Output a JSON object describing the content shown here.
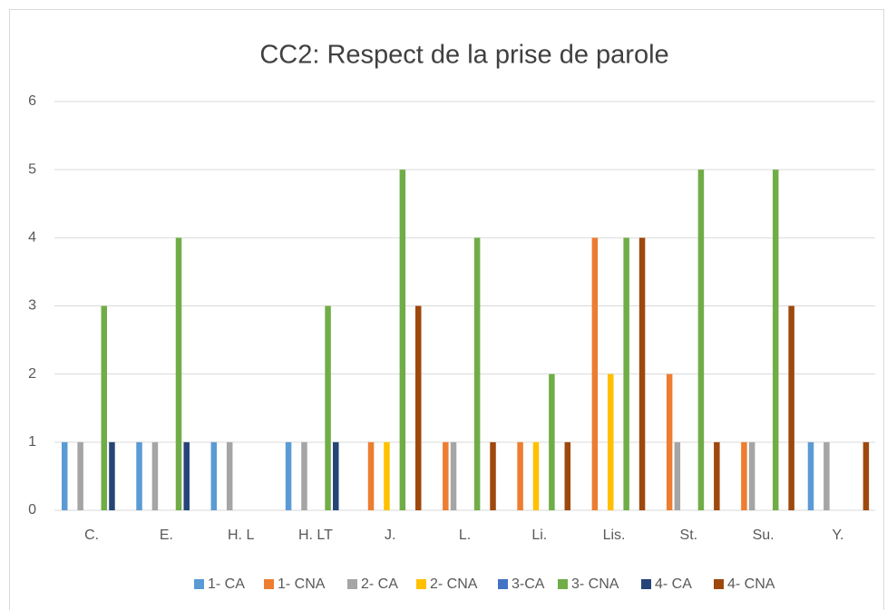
{
  "chart_data": {
    "type": "bar",
    "title": "CC2: Respect de la prise de parole",
    "categories": [
      "C.",
      "E.",
      "H. L",
      "H. LT",
      "J.",
      "L.",
      "Li.",
      "Lis.",
      "St.",
      "Su.",
      "Y."
    ],
    "series": [
      {
        "name": "1- CA",
        "color": "#5b9bd5",
        "values": [
          1,
          1,
          1,
          1,
          0,
          0,
          0,
          0,
          0,
          0,
          1
        ]
      },
      {
        "name": "1- CNA",
        "color": "#ed7d31",
        "values": [
          0,
          0,
          0,
          0,
          1,
          1,
          1,
          4,
          2,
          1,
          0
        ]
      },
      {
        "name": "2- CA",
        "color": "#a5a5a5",
        "values": [
          1,
          1,
          1,
          1,
          0,
          1,
          0,
          0,
          1,
          1,
          1
        ]
      },
      {
        "name": "2- CNA",
        "color": "#ffc000",
        "values": [
          0,
          0,
          0,
          0,
          1,
          0,
          1,
          2,
          0,
          0,
          0
        ]
      },
      {
        "name": "3-CA",
        "color": "#4472c4",
        "values": [
          0,
          0,
          0,
          0,
          0,
          0,
          0,
          0,
          0,
          0,
          0
        ]
      },
      {
        "name": "3- CNA",
        "color": "#70ad47",
        "values": [
          3,
          4,
          0,
          3,
          5,
          4,
          2,
          4,
          5,
          5,
          0
        ]
      },
      {
        "name": "4- CA",
        "color": "#264478",
        "values": [
          1,
          1,
          0,
          1,
          0,
          0,
          0,
          0,
          0,
          0,
          0
        ]
      },
      {
        "name": "4- CNA",
        "color": "#9e480e",
        "values": [
          0,
          0,
          0,
          0,
          3,
          1,
          1,
          4,
          1,
          3,
          1
        ]
      }
    ],
    "ylim": [
      0,
      6
    ],
    "yticks": [
      0,
      1,
      2,
      3,
      4,
      5,
      6
    ],
    "grid": true,
    "legend": "bottom"
  }
}
